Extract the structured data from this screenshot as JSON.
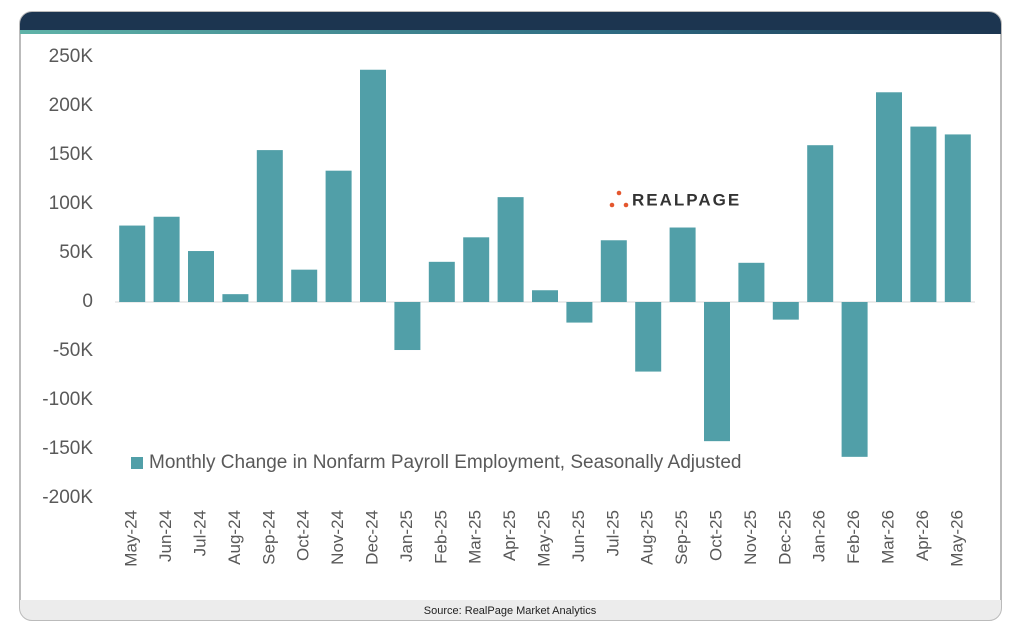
{
  "chart_data": {
    "type": "bar",
    "categories": [
      "May-24",
      "Jun-24",
      "Jul-24",
      "Aug-24",
      "Sep-24",
      "Oct-24",
      "Nov-24",
      "Dec-24",
      "Jan-25",
      "Feb-25",
      "Mar-25",
      "Apr-25",
      "May-25",
      "Jun-25",
      "Jul-25",
      "Aug-25",
      "Sep-25",
      "Oct-25",
      "Nov-25",
      "Dec-25",
      "Jan-26",
      "Feb-26",
      "Mar-26",
      "Apr-26",
      "May-26"
    ],
    "series": [
      {
        "name": "Monthly Change in Nonfarm Payroll Employment, Seasonally Adjusted",
        "color": "#519fa8",
        "values": [
          78000,
          87000,
          52000,
          8000,
          155000,
          33000,
          134000,
          237000,
          -49000,
          41000,
          66000,
          107000,
          12000,
          -21000,
          63000,
          -71000,
          76000,
          -142000,
          40000,
          -18000,
          160000,
          -158000,
          214000,
          179000,
          171000
        ]
      }
    ],
    "ylim": [
      -200000,
      250000
    ],
    "yticks": [
      {
        "value": -200000,
        "label": "-200K"
      },
      {
        "value": -150000,
        "label": "-150K"
      },
      {
        "value": -100000,
        "label": "-100K"
      },
      {
        "value": -50000,
        "label": "-50K"
      },
      0,
      {
        "value": 50000,
        "label": "50K"
      },
      {
        "value": 100000,
        "label": "100K"
      },
      {
        "value": 150000,
        "label": "150K"
      },
      {
        "value": 200000,
        "label": "200K"
      },
      {
        "value": 250000,
        "label": "250K"
      }
    ],
    "logo": "REALPAGE",
    "source": "Source: RealPage Market Analytics"
  }
}
